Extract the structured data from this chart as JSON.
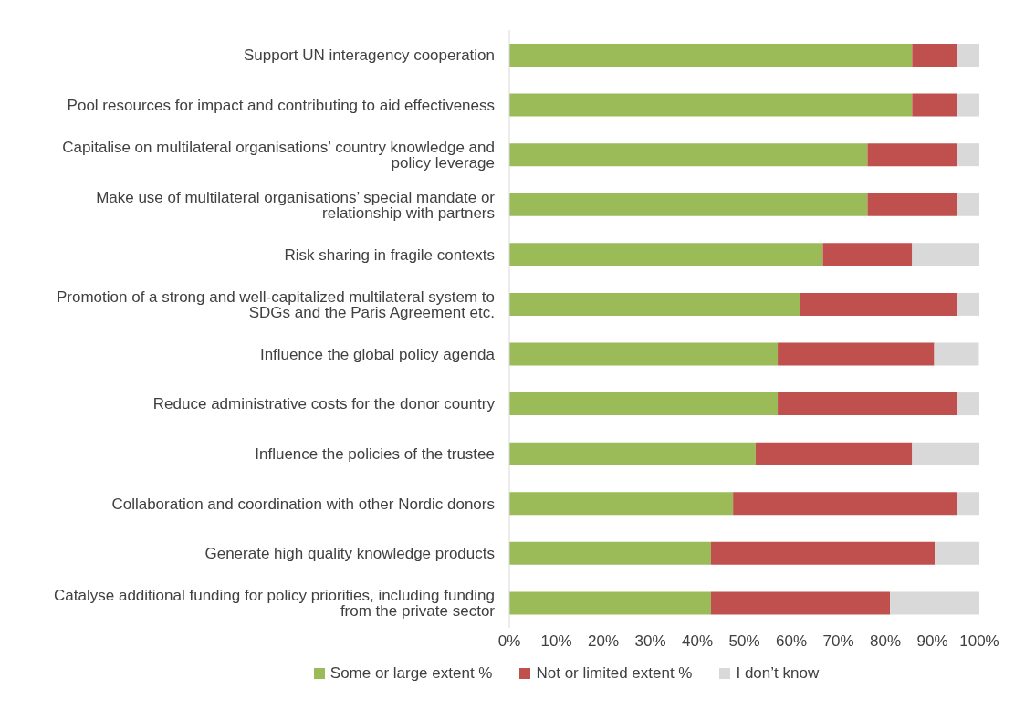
{
  "chart_data": {
    "type": "bar",
    "orientation": "horizontal",
    "stacked": true,
    "legend": "bottom",
    "categories": [
      "Support UN interagency cooperation",
      "Pool resources for impact and contributing to aid effectiveness",
      "Capitalise on multilateral organisations’ country knowledge and policy leverage",
      "Make use of multilateral organisations’ special mandate or relationship with partners",
      "Risk sharing in fragile contexts",
      "Promotion of a strong and well-capitalized multilateral system to SDGs and the Paris Agreement etc.",
      "Influence the global policy agenda",
      "Reduce administrative costs for the donor country",
      "Influence the policies of the trustee",
      "Collaboration and coordination with other Nordic donors",
      "Generate high quality knowledge products",
      "Catalyse additional funding for policy priorities, including funding from the private sector"
    ],
    "series": [
      {
        "name": "Some or large extent %",
        "color": "#9bbb59",
        "values": [
          85.7,
          85.7,
          76.2,
          76.2,
          66.7,
          61.9,
          57.1,
          57.1,
          52.4,
          47.6,
          42.9,
          42.9
        ]
      },
      {
        "name": "Not or limited extent %",
        "color": "#c0504d",
        "values": [
          9.5,
          9.5,
          19.0,
          19.0,
          19.0,
          33.3,
          33.3,
          38.1,
          33.3,
          47.6,
          47.6,
          38.1
        ]
      },
      {
        "name": "I don’t know",
        "color": "#d9d9d9",
        "values": [
          4.8,
          4.8,
          4.8,
          4.8,
          14.3,
          4.8,
          9.5,
          4.8,
          14.3,
          4.8,
          9.5,
          19.0
        ]
      }
    ],
    "xlim": [
      0,
      100
    ],
    "xticks": [
      {
        "value": 0,
        "label": "0%"
      },
      {
        "value": 10,
        "label": "10%"
      },
      {
        "value": 20,
        "label": "20%"
      },
      {
        "value": 30,
        "label": "30%"
      },
      {
        "value": 40,
        "label": "40%"
      },
      {
        "value": 50,
        "label": "50%"
      },
      {
        "value": 60,
        "label": "60%"
      },
      {
        "value": 70,
        "label": "70%"
      },
      {
        "value": 80,
        "label": "80%"
      },
      {
        "value": 90,
        "label": "90%"
      },
      {
        "value": 100,
        "label": "100%"
      }
    ]
  }
}
